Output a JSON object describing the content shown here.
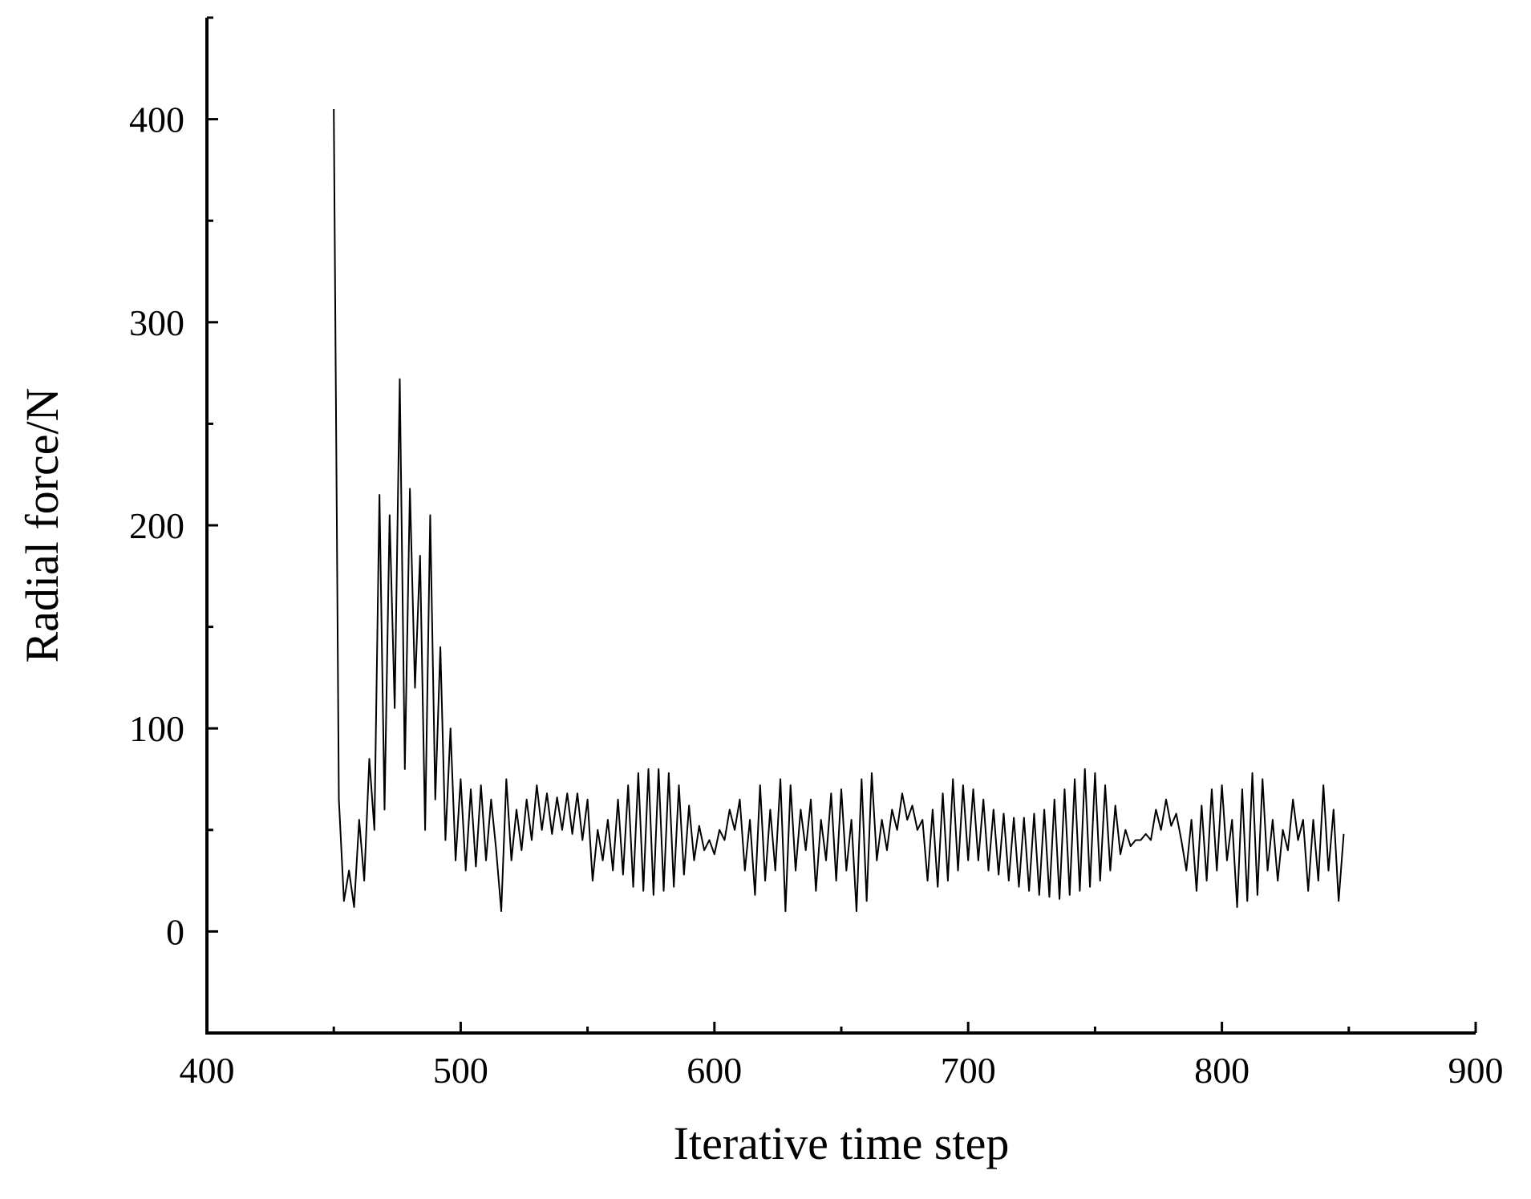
{
  "chart_data": {
    "type": "line",
    "xlabel": "Iterative time step",
    "ylabel": "Radial force/N",
    "xlim": [
      400,
      900
    ],
    "xticks": [
      400,
      500,
      600,
      700,
      800,
      900
    ],
    "xminorticks": [
      450,
      550,
      650,
      750,
      850
    ],
    "ylim": [
      -50,
      450
    ],
    "yticks": [
      0,
      100,
      200,
      300,
      400
    ],
    "yminorticks": [
      -50,
      50,
      150,
      250,
      350,
      450
    ],
    "grid": false,
    "series": [
      {
        "color": "#000000",
        "x": [
          450,
          452,
          454,
          456,
          458,
          460,
          462,
          464,
          466,
          468,
          470,
          472,
          474,
          476,
          478,
          480,
          482,
          484,
          486,
          488,
          490,
          492,
          494,
          496,
          498,
          500,
          502,
          504,
          506,
          508,
          510,
          512,
          514,
          516,
          518,
          520,
          522,
          524,
          526,
          528,
          530,
          532,
          534,
          536,
          538,
          540,
          542,
          544,
          546,
          548,
          550,
          552,
          554,
          556,
          558,
          560,
          562,
          564,
          566,
          568,
          570,
          572,
          574,
          576,
          578,
          580,
          582,
          584,
          586,
          588,
          590,
          592,
          594,
          596,
          598,
          600,
          602,
          604,
          606,
          608,
          610,
          612,
          614,
          616,
          618,
          620,
          622,
          624,
          626,
          628,
          630,
          632,
          634,
          636,
          638,
          640,
          642,
          644,
          646,
          648,
          650,
          652,
          654,
          656,
          658,
          660,
          662,
          664,
          666,
          668,
          670,
          672,
          674,
          676,
          678,
          680,
          682,
          684,
          686,
          688,
          690,
          692,
          694,
          696,
          698,
          700,
          702,
          704,
          706,
          708,
          710,
          712,
          714,
          716,
          718,
          720,
          722,
          724,
          726,
          728,
          730,
          732,
          734,
          736,
          738,
          740,
          742,
          744,
          746,
          748,
          750,
          752,
          754,
          756,
          758,
          760,
          762,
          764,
          766,
          768,
          770,
          772,
          774,
          776,
          778,
          780,
          782,
          784,
          786,
          788,
          790,
          792,
          794,
          796,
          798,
          800,
          802,
          804,
          806,
          808,
          810,
          812,
          814,
          816,
          818,
          820,
          822,
          824,
          826,
          828,
          830,
          832,
          834,
          836,
          838,
          840,
          842,
          844,
          846,
          848
        ],
        "values": [
          405,
          65,
          15,
          30,
          12,
          55,
          25,
          85,
          50,
          215,
          60,
          205,
          110,
          272,
          80,
          218,
          120,
          185,
          50,
          205,
          65,
          140,
          45,
          100,
          35,
          75,
          30,
          70,
          32,
          72,
          35,
          65,
          40,
          10,
          75,
          35,
          60,
          40,
          65,
          45,
          72,
          50,
          68,
          48,
          66,
          50,
          68,
          48,
          68,
          45,
          65,
          25,
          50,
          35,
          55,
          30,
          65,
          28,
          72,
          22,
          78,
          20,
          80,
          18,
          80,
          20,
          78,
          22,
          72,
          28,
          62,
          35,
          52,
          40,
          45,
          38,
          50,
          45,
          60,
          50,
          65,
          30,
          55,
          18,
          72,
          25,
          60,
          30,
          75,
          10,
          72,
          30,
          60,
          40,
          65,
          20,
          55,
          35,
          68,
          25,
          70,
          30,
          55,
          10,
          75,
          15,
          78,
          35,
          55,
          40,
          60,
          50,
          68,
          55,
          62,
          50,
          55,
          25,
          60,
          22,
          68,
          25,
          75,
          30,
          72,
          35,
          70,
          35,
          65,
          30,
          60,
          28,
          58,
          25,
          56,
          22,
          56,
          20,
          58,
          18,
          60,
          17,
          65,
          16,
          70,
          18,
          75,
          20,
          80,
          22,
          78,
          25,
          72,
          30,
          62,
          38,
          50,
          42,
          45,
          45,
          48,
          45,
          60,
          50,
          65,
          52,
          58,
          45,
          30,
          55,
          20,
          62,
          25,
          70,
          30,
          72,
          35,
          55,
          12,
          70,
          15,
          78,
          18,
          75,
          30,
          55,
          25,
          50,
          40,
          65,
          45,
          55,
          20,
          55,
          25,
          72,
          30,
          60,
          15,
          48
        ]
      }
    ]
  }
}
